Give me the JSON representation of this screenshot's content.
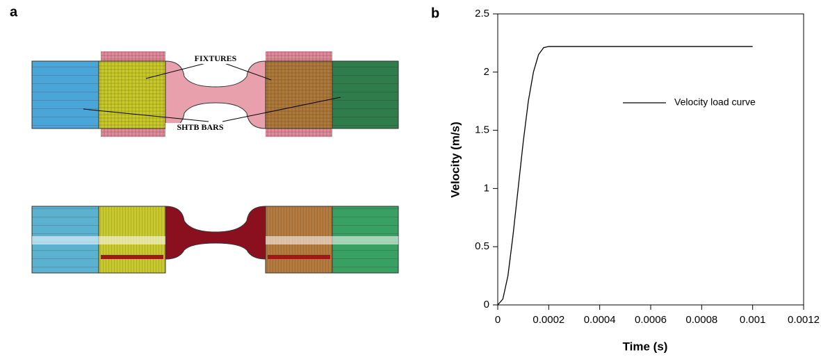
{
  "panel_labels": [
    "a",
    "b"
  ],
  "diagram": {
    "labels": [
      "FIXTURES",
      "SHTB BARS"
    ]
  },
  "chart_data": {
    "type": "line",
    "x_label": "Time (s)",
    "y_label": "Velocity (m/s)",
    "x": [
      0,
      2e-05,
      4e-05,
      6e-05,
      8e-05,
      0.0001,
      0.00012,
      0.00014,
      0.00016,
      0.00018,
      0.0002,
      0.001
    ],
    "series": [
      {
        "name": "Velocity load curve",
        "color": "#000000",
        "values": [
          0,
          0.05,
          0.25,
          0.6,
          1.0,
          1.4,
          1.75,
          2.0,
          2.15,
          2.21,
          2.22,
          2.22
        ]
      }
    ],
    "xlim": [
      0,
      0.0012
    ],
    "xticks": [
      0,
      0.0002,
      0.0004,
      0.0006,
      0.0008,
      0.001,
      0.0012
    ],
    "ylim": [
      0,
      2.5
    ],
    "yticks": [
      0,
      0.5,
      1,
      1.5,
      2,
      2.5
    ],
    "legend": "right"
  }
}
